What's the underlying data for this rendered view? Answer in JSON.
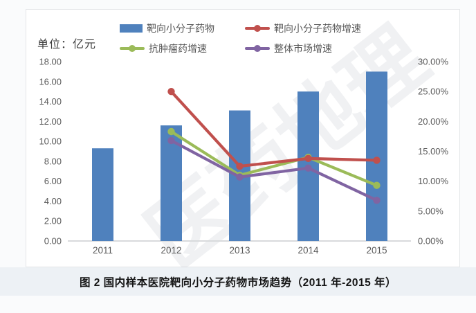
{
  "page": {
    "caption": "图 2  国内样本医院靶向小分子药物市场趋势（2011 年-2015 年）"
  },
  "chart": {
    "unit_label": "单位：亿元",
    "watermark": "医药地理"
  },
  "legend": {
    "items": [
      {
        "label": "靶向小分子药物",
        "type": "bar",
        "color": "#4f81bd"
      },
      {
        "label": "靶向小分子药物增速",
        "type": "line",
        "color": "#c0504d"
      },
      {
        "label": "抗肿瘤药增速",
        "type": "line",
        "color": "#9bbb59"
      },
      {
        "label": "整体市场增速",
        "type": "line",
        "color": "#8064a2"
      }
    ]
  },
  "chart_data": {
    "type": "bar+line",
    "title": "图 2  国内样本医院靶向小分子药物市场趋势（2011 年-2015 年）",
    "categories": [
      "2011",
      "2012",
      "2013",
      "2014",
      "2015"
    ],
    "bar_series": {
      "name": "靶向小分子药物",
      "axis": "left",
      "unit": "亿元",
      "color": "#4f81bd",
      "values": [
        9.3,
        11.6,
        13.1,
        15.0,
        17.0
      ]
    },
    "line_series": [
      {
        "name": "靶向小分子药物增速",
        "axis": "right",
        "color": "#c0504d",
        "values": [
          null,
          25.0,
          12.5,
          13.8,
          13.5
        ]
      },
      {
        "name": "抗肿瘤药增速",
        "axis": "right",
        "color": "#9bbb59",
        "values": [
          null,
          18.3,
          11.0,
          14.0,
          9.3
        ]
      },
      {
        "name": "整体市场增速",
        "axis": "right",
        "color": "#8064a2",
        "values": [
          null,
          16.8,
          10.7,
          12.2,
          6.8
        ]
      }
    ],
    "left_axis": {
      "min": 0,
      "max": 18,
      "ticks": [
        "18.00",
        "16.00",
        "14.00",
        "12.00",
        "10.00",
        "8.00",
        "6.00",
        "4.00",
        "2.00",
        "0.00"
      ]
    },
    "right_axis": {
      "min": 0,
      "max": 30,
      "ticks": [
        "30.00%",
        "25.00%",
        "20.00%",
        "15.00%",
        "10.00%",
        "5.00%",
        "0.00%"
      ]
    },
    "grid": false,
    "legend_position": "top"
  }
}
